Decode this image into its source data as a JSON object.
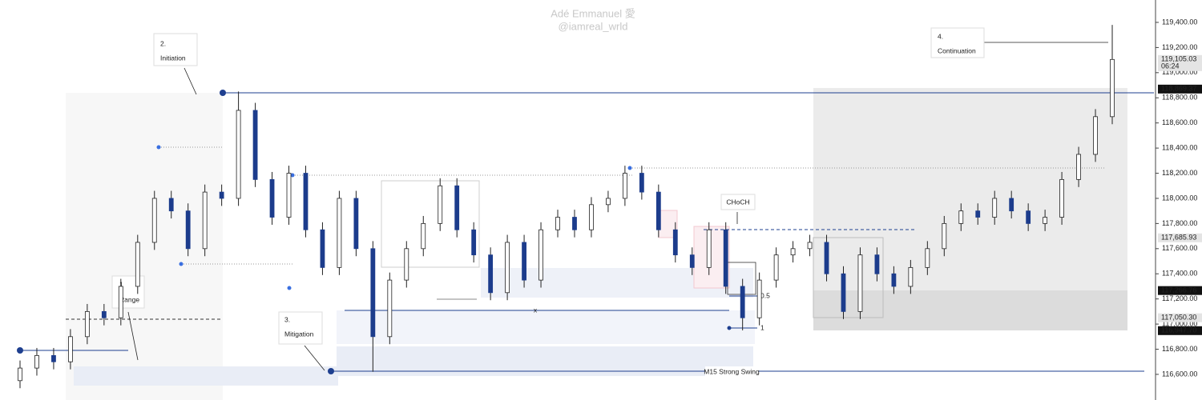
{
  "chart_data": {
    "type": "candlestick",
    "watermark": [
      "Adé Emmanuel 愛",
      "@iamreal_wrld"
    ],
    "annotations": [
      "2.",
      "Initiation",
      "1",
      "Range",
      "3.",
      "Mitigation",
      "4.",
      "Continuation",
      "CHoCH",
      "0.5",
      "1",
      "x",
      "M15 Strong Swing"
    ],
    "categories": [
      null,
      null,
      null,
      null,
      null,
      null,
      null,
      null,
      null,
      null,
      null,
      null,
      null,
      null,
      null,
      null,
      null,
      null,
      null,
      null,
      null,
      null,
      null,
      null,
      null,
      null,
      null,
      null,
      null,
      null,
      null,
      null,
      null,
      null,
      null,
      null,
      null,
      null,
      null,
      null,
      null,
      null,
      null,
      null,
      null,
      null,
      null,
      null,
      null,
      null,
      null,
      null,
      null,
      null,
      null,
      null,
      null,
      null,
      null,
      null,
      null,
      null,
      null,
      null,
      null,
      null
    ],
    "open": [
      116550,
      116650,
      116750,
      116700,
      116900,
      117100,
      117050,
      117300,
      117650,
      118000,
      117900,
      117600,
      118050,
      118000,
      118700,
      118150,
      117850,
      118200,
      117750,
      117450,
      118000,
      117600,
      116900,
      117350,
      117600,
      117800,
      118100,
      117750,
      117550,
      117250,
      117650,
      117350,
      117750,
      117850,
      117750,
      117950,
      118000,
      118200,
      118050,
      117750,
      117550,
      117450,
      117750,
      117300,
      117050,
      117350,
      117550,
      117600,
      117650,
      117400,
      117100,
      117550,
      117400,
      117300,
      117450,
      117600,
      117800,
      117900,
      117850,
      118000,
      117900,
      117800,
      117850,
      118150,
      118350,
      118650
    ],
    "high": [
      116710,
      116810,
      116810,
      116960,
      117160,
      117160,
      117360,
      117710,
      118060,
      118060,
      117960,
      118110,
      118110,
      118850,
      118760,
      118210,
      118260,
      118260,
      117810,
      118060,
      118060,
      117660,
      117410,
      117660,
      117860,
      118160,
      118160,
      117810,
      117610,
      117710,
      117710,
      117810,
      117910,
      117910,
      118010,
      118060,
      118260,
      118260,
      118110,
      117810,
      117610,
      117810,
      117810,
      117360,
      117410,
      117610,
      117660,
      117710,
      117710,
      117460,
      117610,
      117610,
      117460,
      117510,
      117660,
      117860,
      117960,
      117960,
      118060,
      118060,
      117960,
      117910,
      118210,
      118410,
      118710,
      119380
    ],
    "low": [
      116490,
      116590,
      116640,
      116640,
      116840,
      116990,
      116990,
      117240,
      117590,
      117840,
      117540,
      117540,
      117940,
      117940,
      118090,
      117790,
      117790,
      117690,
      117390,
      117390,
      117540,
      116620,
      116840,
      117290,
      117540,
      117740,
      117690,
      117490,
      117190,
      117190,
      117290,
      117290,
      117690,
      117690,
      117690,
      117890,
      117940,
      117990,
      117690,
      117490,
      117390,
      117390,
      117240,
      116950,
      116990,
      117290,
      117490,
      117540,
      117340,
      117040,
      117040,
      117340,
      117240,
      117240,
      117390,
      117540,
      117740,
      117790,
      117790,
      117840,
      117740,
      117740,
      117790,
      118090,
      118290,
      118590
    ],
    "close": [
      116650,
      116750,
      116700,
      116900,
      117100,
      117050,
      117300,
      117650,
      118000,
      117900,
      117600,
      118050,
      118000,
      118700,
      118150,
      117850,
      118200,
      117750,
      117450,
      118000,
      117600,
      116900,
      117350,
      117600,
      117800,
      118100,
      117750,
      117550,
      117250,
      117650,
      117350,
      117750,
      117850,
      117750,
      117950,
      118000,
      118200,
      118050,
      117750,
      117550,
      117450,
      117750,
      117300,
      117050,
      117350,
      117550,
      117600,
      117650,
      117400,
      117100,
      117550,
      117400,
      117300,
      117450,
      117600,
      117800,
      117900,
      117850,
      118000,
      117900,
      117800,
      117850,
      118150,
      118350,
      118650,
      119105
    ],
    "up_color": "#ffffff",
    "down_color": "#1c3c8c",
    "ylim": [
      116396,
      119578
    ],
    "yticks": [
      {
        "value": 116600,
        "label": "116,600.00"
      },
      {
        "value": 116800,
        "label": "116,800.00"
      },
      {
        "value": 117000,
        "label": "117,000.00"
      },
      {
        "value": 117200,
        "label": "117,200.00"
      },
      {
        "value": 117400,
        "label": "117,400.00"
      },
      {
        "value": 117600,
        "label": "117,600.00"
      },
      {
        "value": 117800,
        "label": "117,800.00"
      },
      {
        "value": 118000,
        "label": "118,000.00"
      },
      {
        "value": 118200,
        "label": "118,200.00"
      },
      {
        "value": 118400,
        "label": "118,400.00"
      },
      {
        "value": 118600,
        "label": "118,600.00"
      },
      {
        "value": 118800,
        "label": "118,800.00"
      },
      {
        "value": 119000,
        "label": "119,000.00"
      },
      {
        "value": 119200,
        "label": "119,200.00"
      },
      {
        "value": 119400,
        "label": "119,400.00"
      }
    ],
    "price_labels": [
      {
        "value": 119105.03,
        "label": "119,105.03",
        "countdown": "06:24",
        "dark": false
      },
      {
        "value": 118869.37,
        "label": "118,869.37",
        "dark": true
      },
      {
        "value": 117685.93,
        "label": "117,685.93",
        "dark": false
      },
      {
        "value": 117266.76,
        "label": "117,266.76",
        "dark": true
      },
      {
        "value": 117050.3,
        "label": "117,050.30",
        "dark": false
      },
      {
        "value": 116947.7,
        "label": "116,947.70",
        "dark": true
      }
    ]
  }
}
